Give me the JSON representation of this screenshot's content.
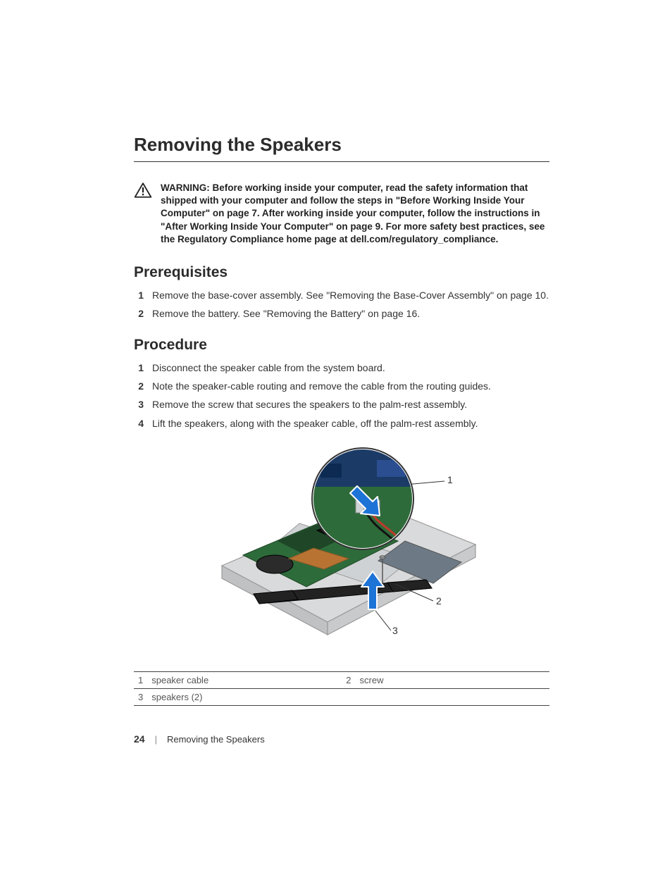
{
  "title": "Removing the Speakers",
  "warning": {
    "label": "WARNING:",
    "text": "Before working inside your computer, read the safety information that shipped with your computer and follow the steps in \"Before Working Inside Your Computer\" on page 7. After working inside your computer, follow the instructions in \"After Working Inside Your Computer\" on page 9. For more safety best practices, see the Regulatory Compliance home page at dell.com/regulatory_compliance."
  },
  "sections": {
    "prerequisites": {
      "heading": "Prerequisites",
      "items": [
        "Remove the base-cover assembly. See \"Removing the Base-Cover Assembly\" on page 10.",
        "Remove the battery. See \"Removing the Battery\" on page 16."
      ]
    },
    "procedure": {
      "heading": "Procedure",
      "items": [
        "Disconnect the speaker cable from the system board.",
        "Note the speaker-cable routing and remove the cable from the routing guides.",
        "Remove the screw that secures the speakers to the palm-rest assembly.",
        "Lift the speakers, along with the speaker cable, off the palm-rest assembly."
      ]
    }
  },
  "figure": {
    "callouts": [
      "1",
      "2",
      "3"
    ],
    "legend": [
      {
        "num": "1",
        "label": "speaker cable"
      },
      {
        "num": "2",
        "label": "screw"
      },
      {
        "num": "3",
        "label": "speakers (2)"
      }
    ],
    "colors": {
      "chassis_fill": "#d9dadb",
      "chassis_stroke": "#9a9a9a",
      "board_green": "#2e6b3a",
      "board_dark": "#1f4727",
      "copper": "#b87333",
      "fan": "#2b2b2b",
      "hdd": "#6d7a86",
      "battery": "#cfd2d4",
      "speaker": "#222222",
      "arrow": "#1e73d6",
      "arrow_outline": "#ffffff",
      "callout_line": "#333333",
      "inset_stroke": "#333333",
      "inset_fill": "#ffffff",
      "cable_red": "#c0392b",
      "cable_black": "#111111",
      "connector": "#cfd2d4",
      "chip_blue": "#2a4e8f"
    }
  },
  "footer": {
    "page_number": "24",
    "chapter": "Removing the Speakers"
  }
}
